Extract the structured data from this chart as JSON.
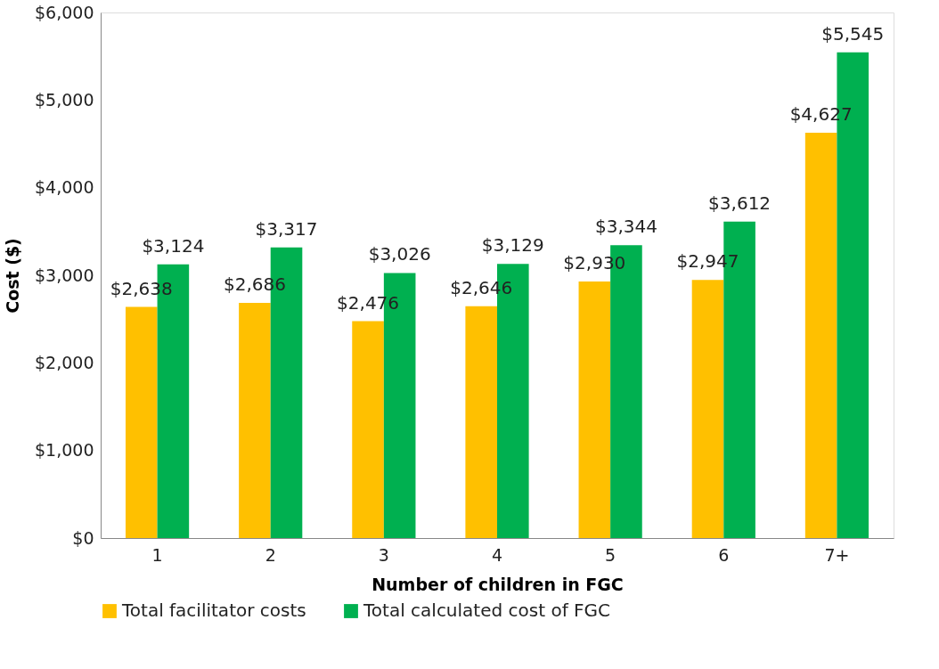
{
  "chart_data": {
    "type": "bar",
    "xlabel": "Number of children in FGC",
    "ylabel": "Cost ($)",
    "categories": [
      "1",
      "2",
      "3",
      "4",
      "5",
      "6",
      "7+"
    ],
    "series": [
      {
        "name": "Total facilitator costs",
        "color": "#ffc000",
        "values": [
          2638,
          2686,
          2476,
          2646,
          2930,
          2947,
          4627
        ],
        "value_labels": [
          "$2,638",
          "$2,686",
          "$2,476",
          "$2,646",
          "$2,930",
          "$2,947",
          "$4,627"
        ]
      },
      {
        "name": "Total calculated cost of FGC",
        "color": "#00b050",
        "values": [
          3124,
          3317,
          3026,
          3129,
          3344,
          3612,
          5545
        ],
        "value_labels": [
          "$3,124",
          "$3,317",
          "$3,026",
          "$3,129",
          "$3,344",
          "$3,612",
          "$5,545"
        ]
      }
    ],
    "ylim": [
      0,
      6000
    ],
    "yticks": [
      {
        "value": 0,
        "label": "$0"
      },
      {
        "value": 1000,
        "label": "$1,000"
      },
      {
        "value": 2000,
        "label": "$2,000"
      },
      {
        "value": 3000,
        "label": "$3,000"
      },
      {
        "value": 4000,
        "label": "$4,000"
      },
      {
        "value": 5000,
        "label": "$5,000"
      },
      {
        "value": 6000,
        "label": "$6,000"
      }
    ],
    "grid": false,
    "legend": "bottom"
  }
}
